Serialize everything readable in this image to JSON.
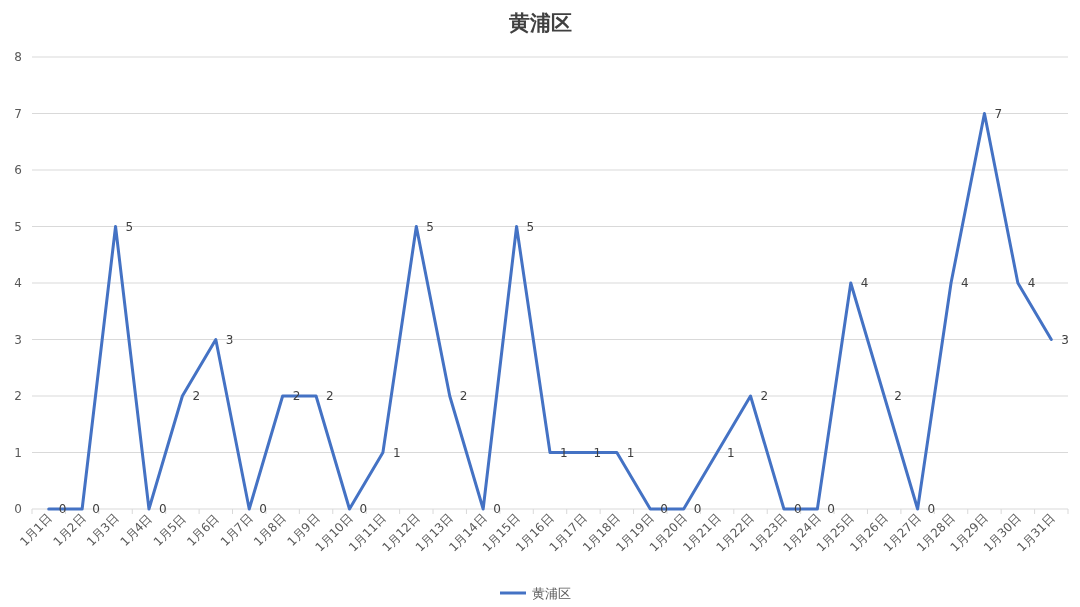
{
  "chart_data": {
    "type": "line",
    "title": "黄浦区",
    "categories": [
      "1月1日",
      "1月2日",
      "1月3日",
      "1月4日",
      "1月5日",
      "1月6日",
      "1月7日",
      "1月8日",
      "1月9日",
      "1月10日",
      "1月11日",
      "1月12日",
      "1月13日",
      "1月14日",
      "1月15日",
      "1月16日",
      "1月17日",
      "1月18日",
      "1月19日",
      "1月20日",
      "1月21日",
      "1月22日",
      "1月23日",
      "1月24日",
      "1月25日",
      "1月26日",
      "1月27日",
      "1月28日",
      "1月29日",
      "1月30日",
      "1月31日"
    ],
    "series": [
      {
        "name": "黄浦区",
        "color": "#4472c4",
        "values": [
          0,
          0,
          5,
          0,
          2,
          3,
          0,
          2,
          2,
          0,
          1,
          5,
          2,
          0,
          5,
          1,
          1,
          1,
          0,
          0,
          1,
          2,
          0,
          0,
          4,
          2,
          0,
          4,
          7,
          4,
          3
        ]
      }
    ],
    "ylim": [
      0,
      8
    ],
    "yticks": [
      0,
      1,
      2,
      3,
      4,
      5,
      6,
      7,
      8
    ],
    "grid": "y",
    "legend": "bottom",
    "data_labels": true
  }
}
